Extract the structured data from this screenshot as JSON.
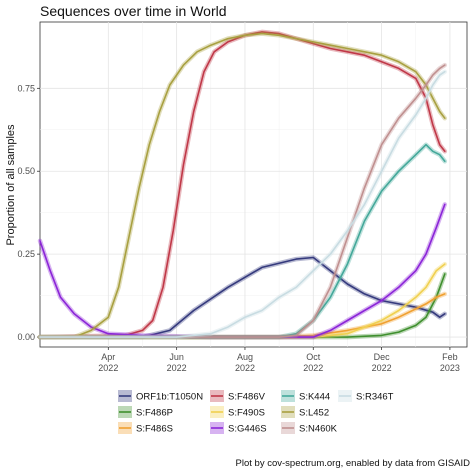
{
  "chart_data": {
    "type": "line",
    "title": "Sequences over time in World",
    "ylabel": "Proportion of all samples",
    "xlabel": "",
    "caption": "Plot by cov-spectrum.org, enabled by data from GISAID",
    "x_domain": [
      0,
      12.5
    ],
    "ylim": [
      -0.03,
      0.95
    ],
    "x_ticks": [
      {
        "x": 2.0,
        "month": "Apr",
        "year": "2022"
      },
      {
        "x": 4.0,
        "month": "Jun",
        "year": "2022"
      },
      {
        "x": 6.0,
        "month": "Aug",
        "year": "2022"
      },
      {
        "x": 8.0,
        "month": "Oct",
        "year": "2022"
      },
      {
        "x": 10.0,
        "month": "Dec",
        "year": "2022"
      },
      {
        "x": 12.0,
        "month": "Feb",
        "year": "2023"
      }
    ],
    "y_ticks": [
      {
        "v": 0.0,
        "label": "0.00"
      },
      {
        "v": 0.25,
        "label": "0.25"
      },
      {
        "v": 0.5,
        "label": "0.50"
      },
      {
        "v": 0.75,
        "label": "0.75"
      }
    ],
    "grid": true,
    "legend_position": "bottom",
    "series": [
      {
        "name": "ORF1b:T1050N",
        "color": "#353a7d",
        "points": [
          [
            0,
            0
          ],
          [
            3,
            0
          ],
          [
            3.8,
            0.02
          ],
          [
            4.5,
            0.08
          ],
          [
            5.5,
            0.15
          ],
          [
            6.5,
            0.21
          ],
          [
            7.5,
            0.235
          ],
          [
            8.0,
            0.24
          ],
          [
            8.5,
            0.2
          ],
          [
            9.0,
            0.16
          ],
          [
            9.5,
            0.13
          ],
          [
            10,
            0.11
          ],
          [
            10.5,
            0.1
          ],
          [
            11,
            0.09
          ],
          [
            11.5,
            0.075
          ],
          [
            11.7,
            0.06
          ],
          [
            11.85,
            0.07
          ]
        ]
      },
      {
        "name": "S:F486P",
        "color": "#3f8f2e",
        "points": [
          [
            0,
            0
          ],
          [
            9,
            0
          ],
          [
            10,
            0.005
          ],
          [
            10.5,
            0.015
          ],
          [
            11,
            0.035
          ],
          [
            11.3,
            0.06
          ],
          [
            11.6,
            0.12
          ],
          [
            11.85,
            0.19
          ]
        ]
      },
      {
        "name": "S:F486S",
        "color": "#f0a030",
        "points": [
          [
            0,
            0
          ],
          [
            7,
            0
          ],
          [
            8,
            0.005
          ],
          [
            9,
            0.02
          ],
          [
            10,
            0.04
          ],
          [
            10.5,
            0.06
          ],
          [
            11,
            0.085
          ],
          [
            11.3,
            0.1
          ],
          [
            11.6,
            0.12
          ],
          [
            11.85,
            0.13
          ]
        ]
      },
      {
        "name": "S:F486V",
        "color": "#c03848",
        "points": [
          [
            0,
            0
          ],
          [
            2.5,
            0.005
          ],
          [
            3,
            0.02
          ],
          [
            3.3,
            0.05
          ],
          [
            3.6,
            0.15
          ],
          [
            3.9,
            0.32
          ],
          [
            4.2,
            0.52
          ],
          [
            4.5,
            0.68
          ],
          [
            4.8,
            0.8
          ],
          [
            5.1,
            0.86
          ],
          [
            5.5,
            0.89
          ],
          [
            6,
            0.91
          ],
          [
            6.5,
            0.92
          ],
          [
            7,
            0.915
          ],
          [
            7.5,
            0.9
          ],
          [
            8,
            0.885
          ],
          [
            8.5,
            0.87
          ],
          [
            9,
            0.86
          ],
          [
            9.5,
            0.85
          ],
          [
            10,
            0.83
          ],
          [
            10.5,
            0.81
          ],
          [
            11,
            0.78
          ],
          [
            11.3,
            0.72
          ],
          [
            11.5,
            0.64
          ],
          [
            11.7,
            0.58
          ],
          [
            11.85,
            0.56
          ]
        ]
      },
      {
        "name": "S:F490S",
        "color": "#f0d050",
        "points": [
          [
            0,
            0
          ],
          [
            8,
            0
          ],
          [
            9,
            0.01
          ],
          [
            10,
            0.05
          ],
          [
            10.5,
            0.08
          ],
          [
            11,
            0.12
          ],
          [
            11.3,
            0.15
          ],
          [
            11.6,
            0.2
          ],
          [
            11.85,
            0.22
          ]
        ]
      },
      {
        "name": "S:G446S",
        "color": "#8b25d8",
        "points": [
          [
            0,
            0.29
          ],
          [
            0.3,
            0.2
          ],
          [
            0.6,
            0.12
          ],
          [
            1.0,
            0.07
          ],
          [
            1.5,
            0.03
          ],
          [
            2,
            0.01
          ],
          [
            3,
            0.005
          ],
          [
            5,
            0
          ],
          [
            8,
            0
          ],
          [
            8.5,
            0.02
          ],
          [
            9,
            0.05
          ],
          [
            9.5,
            0.08
          ],
          [
            10,
            0.11
          ],
          [
            10.5,
            0.15
          ],
          [
            11,
            0.2
          ],
          [
            11.3,
            0.25
          ],
          [
            11.6,
            0.33
          ],
          [
            11.85,
            0.4
          ]
        ]
      },
      {
        "name": "S:K444",
        "color": "#44a89a",
        "points": [
          [
            0,
            0
          ],
          [
            7,
            0
          ],
          [
            7.5,
            0.01
          ],
          [
            8,
            0.05
          ],
          [
            8.5,
            0.12
          ],
          [
            9,
            0.22
          ],
          [
            9.5,
            0.35
          ],
          [
            10,
            0.44
          ],
          [
            10.5,
            0.5
          ],
          [
            11,
            0.55
          ],
          [
            11.3,
            0.58
          ],
          [
            11.5,
            0.56
          ],
          [
            11.7,
            0.55
          ],
          [
            11.85,
            0.53
          ]
        ]
      },
      {
        "name": "S:L452",
        "color": "#a8a040",
        "points": [
          [
            0,
            0
          ],
          [
            1,
            0
          ],
          [
            1.5,
            0.02
          ],
          [
            2,
            0.06
          ],
          [
            2.3,
            0.15
          ],
          [
            2.6,
            0.3
          ],
          [
            2.9,
            0.45
          ],
          [
            3.2,
            0.58
          ],
          [
            3.5,
            0.68
          ],
          [
            3.8,
            0.76
          ],
          [
            4.2,
            0.82
          ],
          [
            4.6,
            0.86
          ],
          [
            5,
            0.88
          ],
          [
            5.5,
            0.9
          ],
          [
            6,
            0.91
          ],
          [
            6.5,
            0.915
          ],
          [
            7,
            0.91
          ],
          [
            7.5,
            0.9
          ],
          [
            8,
            0.89
          ],
          [
            8.5,
            0.88
          ],
          [
            9,
            0.87
          ],
          [
            9.5,
            0.86
          ],
          [
            10,
            0.85
          ],
          [
            10.5,
            0.83
          ],
          [
            11,
            0.8
          ],
          [
            11.3,
            0.76
          ],
          [
            11.5,
            0.72
          ],
          [
            11.7,
            0.68
          ],
          [
            11.85,
            0.66
          ]
        ]
      },
      {
        "name": "S:N460K",
        "color": "#c09090",
        "points": [
          [
            0,
            0
          ],
          [
            7,
            0
          ],
          [
            7.5,
            0.005
          ],
          [
            8,
            0.05
          ],
          [
            8.5,
            0.15
          ],
          [
            9,
            0.3
          ],
          [
            9.5,
            0.45
          ],
          [
            10,
            0.58
          ],
          [
            10.5,
            0.66
          ],
          [
            11,
            0.72
          ],
          [
            11.3,
            0.76
          ],
          [
            11.5,
            0.79
          ],
          [
            11.7,
            0.81
          ],
          [
            11.85,
            0.82
          ]
        ]
      },
      {
        "name": "S:R346T",
        "color": "#c8dce2",
        "points": [
          [
            0,
            0
          ],
          [
            4,
            0
          ],
          [
            5,
            0.01
          ],
          [
            5.5,
            0.03
          ],
          [
            6,
            0.06
          ],
          [
            6.5,
            0.08
          ],
          [
            7,
            0.12
          ],
          [
            7.5,
            0.15
          ],
          [
            8,
            0.2
          ],
          [
            8.5,
            0.25
          ],
          [
            9,
            0.32
          ],
          [
            9.5,
            0.4
          ],
          [
            10,
            0.5
          ],
          [
            10.5,
            0.6
          ],
          [
            11,
            0.67
          ],
          [
            11.3,
            0.72
          ],
          [
            11.5,
            0.76
          ],
          [
            11.7,
            0.79
          ],
          [
            11.85,
            0.8
          ]
        ]
      }
    ]
  }
}
